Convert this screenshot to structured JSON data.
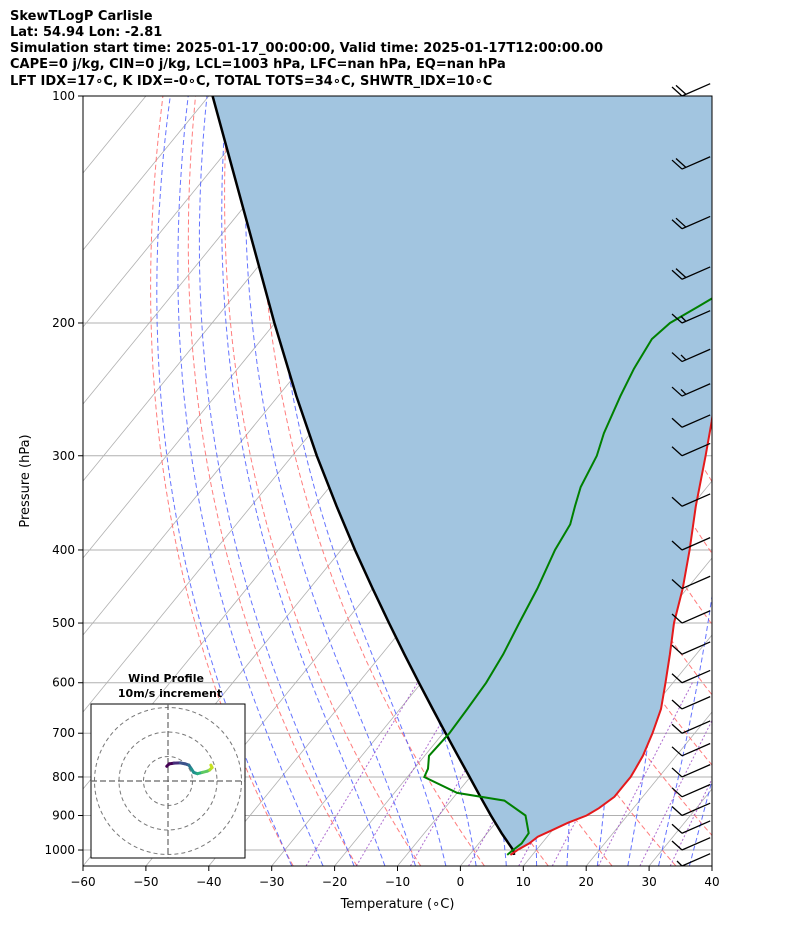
{
  "header": {
    "line1": "SkewTLogP Carlisle",
    "line2": "Lat: 54.94   Lon: -2.81",
    "line3": "Simulation start time: 2025-01-17_00:00:00, Valid time: 2025-01-17T12:00:00.00",
    "line4": "CAPE=0 j/kg, CIN=0 j/kg, LCL=1003 hPa, LFC=nan hPa, EQ=nan hPa",
    "line5": "LFT IDX=17∘C, K IDX=-0∘C, TOTAL TOTS=34∘C, SHWTR_IDX=10∘C"
  },
  "chart_data": {
    "type": "line",
    "title": "SkewTLogP Carlisle",
    "xlabel": "Temperature (∘C)",
    "ylabel": "Pressure (hPa)",
    "xlim": [
      -60,
      40
    ],
    "ylim": [
      1050,
      100
    ],
    "yscale": "log",
    "skew": 1.0,
    "x_ticks": [
      -60,
      -50,
      -40,
      -30,
      -20,
      -10,
      0,
      10,
      20,
      30,
      40
    ],
    "x_tick_labels": [
      "−60",
      "−50",
      "−40",
      "−30",
      "−20",
      "−10",
      "0",
      "10",
      "20",
      "30",
      "40"
    ],
    "y_ticks": [
      1000,
      900,
      800,
      700,
      600,
      500,
      400,
      300,
      200,
      100
    ],
    "y_tick_labels": [
      "1000",
      "900",
      "800",
      "700",
      "600",
      "500",
      "400",
      "300",
      "200",
      "100"
    ],
    "grid": true,
    "colors": {
      "temperature": "#e41a1c",
      "dewpoint": "#008000",
      "parcel": "#000000",
      "fill": "#a2c5e0",
      "isotherm": "#b0b0b0",
      "dry_adiabat": "#ff6666",
      "moist_adiabat": "#4a5cff",
      "mixing_ratio": "#9a47c4"
    },
    "series": [
      {
        "key": "temperature",
        "p": [
          1015,
          1000,
          980,
          960,
          940,
          920,
          900,
          880,
          850,
          820,
          800,
          780,
          750,
          700,
          650,
          600,
          550,
          500,
          450,
          400,
          350,
          300,
          270,
          250,
          230,
          220,
          210,
          200,
          190,
          170,
          150,
          140,
          130,
          120,
          110,
          100
        ],
        "t": [
          6.5,
          7.0,
          8.0,
          8.5,
          10,
          11.5,
          13.5,
          14.5,
          15.5,
          15.5,
          15.5,
          15.2,
          14.7,
          13.3,
          11.5,
          8.8,
          5.8,
          2.4,
          -0.7,
          -4.6,
          -9.3,
          -14.3,
          -17.8,
          -20.5,
          -22.3,
          -22.6,
          -22.8,
          -22.6,
          -22.6,
          -22.6,
          -20.9,
          -19.1,
          -16.7,
          -15.0,
          -14.8,
          -14.5
        ]
      },
      {
        "key": "dewpoint",
        "p": [
          1015,
          1000,
          980,
          950,
          900,
          860,
          840,
          800,
          780,
          750,
          700,
          650,
          600,
          550,
          500,
          450,
          400,
          370,
          350,
          330,
          300,
          280,
          250,
          230,
          210,
          200,
          190,
          180,
          170,
          160,
          150,
          140,
          120,
          110,
          100
        ],
        "t": [
          6.0,
          6.3,
          6.8,
          6.6,
          3.8,
          -1.5,
          -10.0,
          -17.3,
          -17.8,
          -19.3,
          -19.0,
          -19.3,
          -19.7,
          -20.7,
          -22.2,
          -23.8,
          -26.0,
          -26.9,
          -28.5,
          -30.1,
          -31.6,
          -33.4,
          -35.6,
          -37.0,
          -38.0,
          -37.2,
          -34.8,
          -32.3,
          -30.5,
          -29.7,
          -28.3,
          -28.5,
          -25.0,
          -21.0,
          -16.0
        ]
      },
      {
        "key": "parcel",
        "p": [
          1015,
          1003,
          1000,
          950,
          900,
          850,
          800,
          750,
          700,
          650,
          600,
          550,
          500,
          450,
          400,
          350,
          300,
          250,
          200,
          150,
          100
        ],
        "t": [
          7.1,
          6.5,
          6.3,
          2.3,
          -1.7,
          -5.8,
          -10.1,
          -14.7,
          -19.6,
          -24.8,
          -30.4,
          -36.4,
          -42.9,
          -50.0,
          -57.8,
          -66.4,
          -76.1,
          -87.1,
          -100.1,
          -116.4,
          -139.4
        ]
      }
    ],
    "wind_barbs": {
      "pressures": [
        100,
        125,
        150,
        175,
        200,
        225,
        250,
        275,
        300,
        350,
        400,
        450,
        500,
        550,
        600,
        650,
        700,
        750,
        800,
        850,
        900,
        950,
        1000,
        1050
      ],
      "directions": [
        270,
        270,
        270,
        270,
        270,
        270,
        270,
        270,
        270,
        270,
        270,
        270,
        270,
        270,
        270,
        270,
        270,
        270,
        270,
        270,
        270,
        270,
        270,
        270
      ],
      "speeds_kt": [
        20,
        20,
        20,
        20,
        15,
        15,
        15,
        10,
        10,
        10,
        10,
        10,
        10,
        10,
        10,
        10,
        10,
        10,
        10,
        10,
        10,
        10,
        10,
        5
      ]
    },
    "inset": {
      "title": "Wind Profile",
      "subtitle": "10m/s increment",
      "rings": [
        10,
        20,
        30
      ],
      "hodograph_u": [
        -0.5,
        0.5,
        2.5,
        5.0,
        7.0,
        8.5,
        9.5,
        10.5,
        12.0,
        14.0,
        16.0,
        17.0,
        18.0,
        17.5
      ],
      "hodograph_v": [
        6.0,
        7.0,
        7.3,
        7.4,
        7.0,
        6.5,
        5.0,
        3.5,
        3.0,
        3.5,
        4.0,
        4.5,
        5.5,
        6.5
      ]
    }
  }
}
